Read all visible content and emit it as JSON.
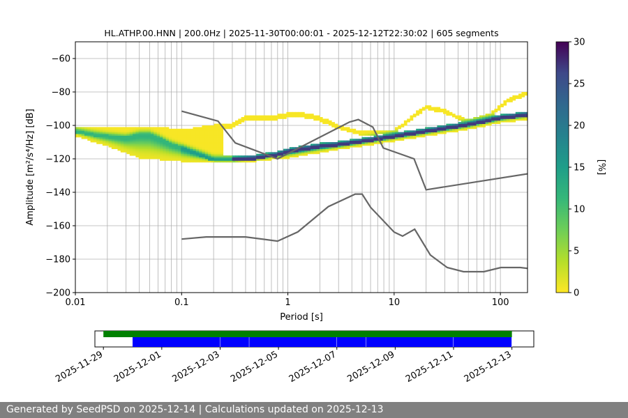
{
  "chart_data": [
    {
      "type": "heatmap",
      "title": "HL.ATHP.00.HNN | 200.0Hz | 2025-11-30T00:00:01 - 2025-12-12T22:30:02 | 605 segments",
      "xlabel": "Period [s]",
      "ylabel": "Amplitude [m²/s⁴/Hz] [dB]",
      "xscale": "log",
      "xlim": [
        0.01,
        180
      ],
      "ylim": [
        -200,
        -50
      ],
      "x_tick_labels": [
        "0.01",
        "0.1",
        "1",
        "10",
        "100"
      ],
      "y_ticks": [
        -60,
        -80,
        -100,
        -120,
        -140,
        -160,
        -180,
        -200
      ],
      "grid": true,
      "colorbar": {
        "label": "[%]",
        "range": [
          0,
          30
        ],
        "ticks": [
          0,
          5,
          10,
          15,
          20,
          25,
          30
        ],
        "colormap": "viridis_r"
      },
      "ppsd_mode": [
        [
          0.01,
          -104
        ],
        [
          0.015,
          -106
        ],
        [
          0.02,
          -107
        ],
        [
          0.03,
          -108
        ],
        [
          0.04,
          -106
        ],
        [
          0.05,
          -106
        ],
        [
          0.06,
          -108
        ],
        [
          0.08,
          -112
        ],
        [
          0.1,
          -114
        ],
        [
          0.15,
          -118
        ],
        [
          0.2,
          -121
        ],
        [
          0.3,
          -121
        ],
        [
          0.5,
          -120
        ],
        [
          0.8,
          -118
        ],
        [
          1,
          -116
        ],
        [
          2,
          -113
        ],
        [
          3,
          -112
        ],
        [
          5,
          -110
        ],
        [
          10,
          -107
        ],
        [
          20,
          -104
        ],
        [
          50,
          -100
        ],
        [
          100,
          -96
        ],
        [
          180,
          -94
        ]
      ],
      "ppsd_lower": [
        [
          0.01,
          -106
        ],
        [
          0.02,
          -112
        ],
        [
          0.04,
          -119
        ],
        [
          0.1,
          -121
        ],
        [
          0.2,
          -122
        ],
        [
          0.5,
          -121
        ],
        [
          1,
          -119
        ],
        [
          3,
          -114
        ],
        [
          5,
          -112
        ],
        [
          10,
          -109
        ],
        [
          20,
          -106
        ],
        [
          50,
          -102
        ],
        [
          100,
          -98
        ],
        [
          180,
          -96
        ]
      ],
      "ppsd_upper": [
        [
          0.01,
          -102
        ],
        [
          0.03,
          -103
        ],
        [
          0.06,
          -102
        ],
        [
          0.1,
          -104
        ],
        [
          0.2,
          -101
        ],
        [
          0.3,
          -100
        ],
        [
          0.4,
          -95
        ],
        [
          0.8,
          -95
        ],
        [
          1.2,
          -93
        ],
        [
          2,
          -96
        ],
        [
          3,
          -101
        ],
        [
          5,
          -105
        ],
        [
          10,
          -104
        ],
        [
          15,
          -95
        ],
        [
          20,
          -89
        ],
        [
          30,
          -92
        ],
        [
          50,
          -98
        ],
        [
          80,
          -94
        ],
        [
          120,
          -85
        ],
        [
          180,
          -81
        ]
      ],
      "nhnm": [
        [
          0.1,
          -91.5
        ],
        [
          0.22,
          -97.4
        ],
        [
          0.32,
          -110.5
        ],
        [
          0.8,
          -120
        ],
        [
          3.8,
          -98
        ],
        [
          4.6,
          -96.5
        ],
        [
          6.3,
          -101
        ],
        [
          7.9,
          -113.5
        ],
        [
          15.4,
          -120
        ],
        [
          20,
          -138.5
        ],
        [
          354.8,
          -126
        ]
      ],
      "nlnm": [
        [
          0.1,
          -168
        ],
        [
          0.17,
          -166.7
        ],
        [
          0.4,
          -166.7
        ],
        [
          0.8,
          -169.2
        ],
        [
          1.24,
          -163.7
        ],
        [
          2.4,
          -148.6
        ],
        [
          4.3,
          -141.1
        ],
        [
          5,
          -141.1
        ],
        [
          6,
          -149
        ],
        [
          10,
          -163.8
        ],
        [
          12,
          -166.2
        ],
        [
          15.6,
          -162.1
        ],
        [
          21.9,
          -177.5
        ],
        [
          31.6,
          -185
        ],
        [
          45,
          -187.5
        ],
        [
          70,
          -187.5
        ],
        [
          101,
          -185
        ],
        [
          154,
          -185
        ],
        [
          328,
          -187.5
        ]
      ]
    },
    {
      "type": "timeline",
      "x_tick_labels": [
        "2025-11-29",
        "2025-12-01",
        "2025-12-03",
        "2025-12-05",
        "2025-12-07",
        "2025-12-09",
        "2025-12-11",
        "2025-12-13"
      ],
      "xlim": [
        "2025-11-28T17:00:00",
        "2025-12-13T18:00:00"
      ],
      "data_span": {
        "start": "2025-11-29T00:00:00",
        "end": "2025-12-13T00:00:00",
        "color": "#008000"
      },
      "used_segments": [
        {
          "start": "2025-11-30T00:00:00",
          "end": "2025-12-03T00:00:00"
        },
        {
          "start": "2025-12-03T00:00:00",
          "end": "2025-12-04T00:00:00"
        },
        {
          "start": "2025-12-04T00:00:00",
          "end": "2025-12-07T00:00:00"
        },
        {
          "start": "2025-12-07T00:00:00",
          "end": "2025-12-08T00:00:00"
        },
        {
          "start": "2025-12-08T00:00:00",
          "end": "2025-12-11T00:00:00"
        },
        {
          "start": "2025-12-11T00:00:00",
          "end": "2025-12-13T00:00:00"
        }
      ],
      "used_color": "#0000ff"
    }
  ],
  "footer": {
    "text": "Generated by SeedPSD on 2025-12-14 | Calculations updated on 2025-12-13"
  }
}
